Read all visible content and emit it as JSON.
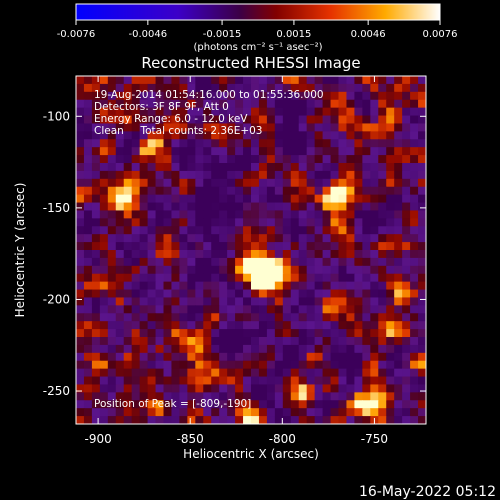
{
  "colorbar": {
    "ticks": [
      "-0.0076",
      "-0.0046",
      "-0.0015",
      "0.0015",
      "0.0046",
      "0.0076"
    ],
    "tick_values": [
      -0.0076,
      -0.0046,
      -0.0015,
      0.0015,
      0.0046,
      0.0076
    ],
    "unit_label": "(photons cm⁻² s⁻¹ asec⁻²)",
    "range": [
      -0.0076,
      0.0076
    ],
    "colors": [
      "#0000ff",
      "#5a00b4",
      "#a01e14",
      "#ff7800",
      "#ffffff"
    ]
  },
  "chart_data": {
    "type": "heatmap",
    "title": "Reconstructed RHESSI Image",
    "xlabel": "Heliocentric X (arcsec)",
    "ylabel": "Heliocentric Y (arcsec)",
    "xlim": [
      -912,
      -722
    ],
    "ylim": [
      -268,
      -78
    ],
    "xticks": [
      -900,
      -850,
      -800,
      -750
    ],
    "yticks": [
      -100,
      -150,
      -200,
      -250
    ],
    "xtick_labels": [
      "-900",
      "-850",
      "-800",
      "-750"
    ],
    "ytick_labels": [
      "-100",
      "-150",
      "-200",
      "-250"
    ],
    "info_lines": [
      "19-Aug-2014 01:54:16.000 to 01:55:36.000",
      "Detectors: 3F 8F 9F, Att 0",
      "Energy Range: 6.0 - 12.0 keV",
      "Clean     Total counts: 2.36E+03"
    ],
    "peak_label": "Position of Peak = [-809,-190]",
    "peak": [
      -809,
      -190
    ],
    "grid": false,
    "legend": "none",
    "bright_sources": [
      {
        "x": -807,
        "y": -186,
        "intensity": 1.0
      },
      {
        "x": -815,
        "y": -182,
        "intensity": 0.75
      },
      {
        "x": -882,
        "y": -145,
        "intensity": 0.65
      },
      {
        "x": -872,
        "y": -120,
        "intensity": 0.55
      },
      {
        "x": -757,
        "y": -262,
        "intensity": 0.7
      },
      {
        "x": -893,
        "y": -195,
        "intensity": 0.5
      },
      {
        "x": -768,
        "y": -150,
        "intensity": 0.5
      },
      {
        "x": -735,
        "y": -200,
        "intensity": 0.45
      },
      {
        "x": -845,
        "y": -230,
        "intensity": 0.45
      },
      {
        "x": -790,
        "y": -245,
        "intensity": 0.4
      },
      {
        "x": -830,
        "y": -110,
        "intensity": 0.45
      },
      {
        "x": -900,
        "y": -240,
        "intensity": 0.4
      }
    ]
  },
  "timestamp": "16-May-2022 05:12"
}
